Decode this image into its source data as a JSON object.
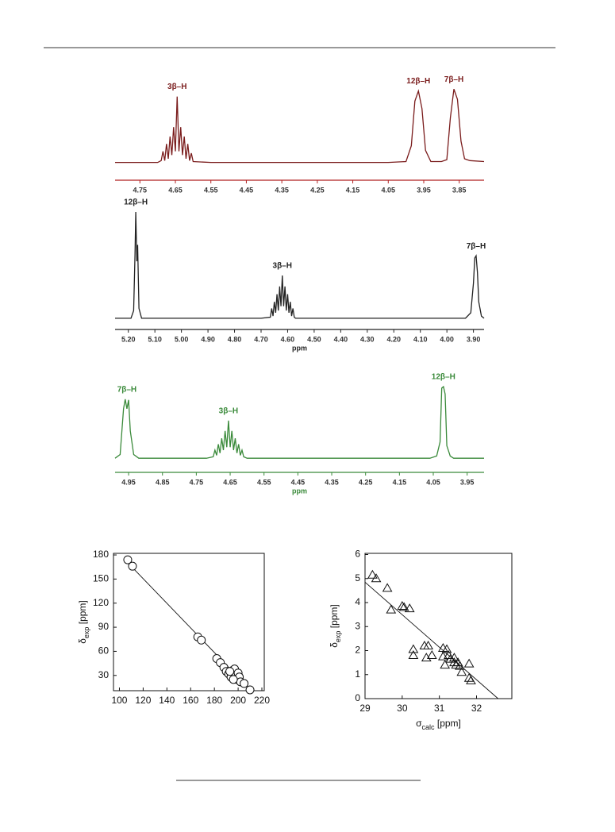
{
  "chart_data": [
    {
      "type": "line",
      "color": "#7a1c1c",
      "axis_color": "#b02020",
      "x": [
        4.82,
        4.7,
        4.69,
        4.685,
        4.68,
        4.675,
        4.67,
        4.665,
        4.66,
        4.655,
        4.65,
        4.645,
        4.64,
        4.635,
        4.63,
        4.625,
        4.62,
        4.615,
        4.61,
        4.605,
        4.6,
        4.55,
        4.3,
        4.05,
        4.0,
        3.985,
        3.975,
        3.965,
        3.955,
        3.945,
        3.93,
        3.9,
        3.885,
        3.875,
        3.865,
        3.855,
        3.845,
        3.835,
        3.82,
        3.78
      ],
      "values": [
        2,
        2,
        4,
        14,
        4,
        22,
        6,
        30,
        10,
        40,
        14,
        73,
        14,
        40,
        10,
        30,
        6,
        22,
        4,
        12,
        3,
        2,
        2,
        2,
        3,
        20,
        68,
        79,
        60,
        15,
        3,
        3,
        5,
        50,
        81,
        70,
        25,
        6,
        4,
        3
      ],
      "xlim": [
        4.82,
        3.78
      ],
      "ylim": [
        0,
        100
      ],
      "xticks": [
        4.75,
        4.65,
        4.55,
        4.45,
        4.35,
        4.25,
        4.15,
        4.05,
        3.95,
        3.85
      ],
      "annotations": [
        {
          "text": "3β–H",
          "x": 4.645
        },
        {
          "text": "12β–H",
          "x": 3.965
        },
        {
          "text": "7β–H",
          "x": 3.865
        }
      ]
    },
    {
      "type": "line",
      "color": "#222222",
      "axis_color": "#222222",
      "xlabel": "ppm",
      "x": [
        5.25,
        5.19,
        5.18,
        5.175,
        5.172,
        5.168,
        5.165,
        5.16,
        5.15,
        4.7,
        4.665,
        4.66,
        4.655,
        4.65,
        4.645,
        4.64,
        4.635,
        4.63,
        4.625,
        4.62,
        4.615,
        4.61,
        4.605,
        4.6,
        4.595,
        4.59,
        4.585,
        4.58,
        4.575,
        4.57,
        4.56,
        3.93,
        3.91,
        3.9,
        3.895,
        3.89,
        3.885,
        3.88,
        3.87,
        3.86
      ],
      "values": [
        3,
        3,
        10,
        60,
        100,
        55,
        70,
        12,
        3,
        3,
        4,
        12,
        5,
        18,
        8,
        25,
        10,
        32,
        14,
        42,
        14,
        32,
        10,
        25,
        8,
        18,
        5,
        12,
        4,
        3,
        3,
        3,
        8,
        35,
        58,
        60,
        45,
        18,
        5,
        3
      ],
      "xlim": [
        5.25,
        3.86
      ],
      "ylim": [
        0,
        100
      ],
      "xticks": [
        {
          "value": 5.2,
          "label": "5.20"
        },
        {
          "value": 5.1,
          "label": "5.10"
        },
        {
          "value": 5.0,
          "label": "5.00"
        },
        {
          "value": 4.9,
          "label": "4.90"
        },
        {
          "value": 4.8,
          "label": "4.80"
        },
        {
          "value": 4.7,
          "label": "4.70"
        },
        {
          "value": 4.6,
          "label": "4.60"
        },
        {
          "value": 4.5,
          "label": "4.50"
        },
        {
          "value": 4.4,
          "label": "4.40"
        },
        {
          "value": 4.3,
          "label": "4.30"
        },
        {
          "value": 4.2,
          "label": "4.20"
        },
        {
          "value": 4.1,
          "label": "4.10"
        },
        {
          "value": 4.0,
          "label": "4.00"
        },
        {
          "value": 3.9,
          "label": "3.90"
        }
      ],
      "annotations": [
        {
          "text": "12β–H",
          "x": 5.172
        },
        {
          "text": "3β–H",
          "x": 4.62
        },
        {
          "text": "7β–H",
          "x": 3.89
        }
      ]
    },
    {
      "type": "line",
      "color": "#3a8a3a",
      "axis_color": "#3a8a3a",
      "xlabel": "ppm",
      "x": [
        4.99,
        4.975,
        4.965,
        4.96,
        4.955,
        4.95,
        4.945,
        4.935,
        4.92,
        4.72,
        4.7,
        4.695,
        4.69,
        4.685,
        4.68,
        4.675,
        4.67,
        4.665,
        4.66,
        4.655,
        4.65,
        4.645,
        4.64,
        4.635,
        4.63,
        4.625,
        4.62,
        4.615,
        4.61,
        4.6,
        4.59,
        4.06,
        4.04,
        4.03,
        4.025,
        4.02,
        4.015,
        4.01,
        4.0,
        3.99,
        3.97,
        3.9
      ],
      "values": [
        3,
        8,
        70,
        83,
        70,
        82,
        40,
        8,
        3,
        3,
        5,
        14,
        7,
        22,
        10,
        30,
        14,
        40,
        18,
        54,
        18,
        40,
        14,
        30,
        10,
        22,
        7,
        14,
        5,
        3,
        3,
        3,
        6,
        25,
        98,
        100,
        90,
        20,
        6,
        3,
        3,
        3
      ],
      "xlim": [
        4.99,
        3.9
      ],
      "ylim": [
        0,
        100
      ],
      "xticks": [
        4.95,
        4.85,
        4.75,
        4.65,
        4.55,
        4.45,
        4.35,
        4.25,
        4.15,
        4.05,
        3.95
      ],
      "annotations": [
        {
          "text": "7β–H",
          "x": 4.955
        },
        {
          "text": "3β–H",
          "x": 4.655
        },
        {
          "text": "12β–H",
          "x": 4.02
        }
      ]
    },
    {
      "type": "scatter",
      "marker": "circle",
      "ylabel": [
        "δ",
        "exp",
        " [ppm]"
      ],
      "x": [
        107,
        111,
        166,
        169,
        182,
        185,
        188,
        190,
        192,
        194,
        195,
        197,
        198,
        199,
        200,
        201,
        202,
        205,
        210,
        196,
        193
      ],
      "values": [
        174,
        166,
        78,
        74,
        51,
        46,
        40,
        35,
        32,
        28,
        36,
        38,
        30,
        25,
        33,
        28,
        22,
        20,
        12,
        25,
        35
      ],
      "fit": {
        "x": [
          104,
          211
        ],
        "values": [
          175,
          11
        ]
      },
      "xlim": [
        95,
        222
      ],
      "ylim": [
        11,
        182
      ],
      "xticks": [
        100,
        120,
        140,
        160,
        180,
        200,
        220
      ],
      "yticks": [
        30,
        60,
        90,
        120,
        150,
        180
      ]
    },
    {
      "type": "scatter",
      "marker": "triangle",
      "xlabel": [
        "σ",
        "calc",
        " [ppm]"
      ],
      "ylabel": [
        "δ",
        "exp",
        " [ppm]"
      ],
      "x": [
        29.2,
        29.3,
        29.6,
        29.7,
        30.0,
        30.05,
        30.2,
        30.3,
        30.3,
        30.6,
        30.65,
        30.7,
        30.8,
        31.1,
        31.1,
        31.15,
        31.2,
        31.25,
        31.3,
        31.4,
        31.4,
        31.45,
        31.5,
        31.55,
        31.6,
        31.8,
        31.8,
        31.85
      ],
      "values": [
        5.15,
        5.0,
        4.6,
        3.7,
        3.85,
        3.8,
        3.75,
        2.05,
        1.8,
        2.2,
        1.7,
        2.2,
        1.8,
        2.1,
        1.75,
        1.4,
        2.05,
        1.8,
        1.65,
        1.5,
        1.7,
        1.4,
        1.5,
        1.35,
        1.1,
        1.45,
        0.85,
        0.75
      ],
      "fit": {
        "x": [
          29,
          32.58
        ],
        "values": [
          4.85,
          0
        ]
      },
      "xlim": [
        29,
        32.95
      ],
      "ylim": [
        0,
        6.05
      ],
      "xticks": [
        29,
        30,
        31,
        32
      ],
      "yticks": [
        0,
        1,
        2,
        3,
        4,
        5,
        6
      ]
    }
  ]
}
